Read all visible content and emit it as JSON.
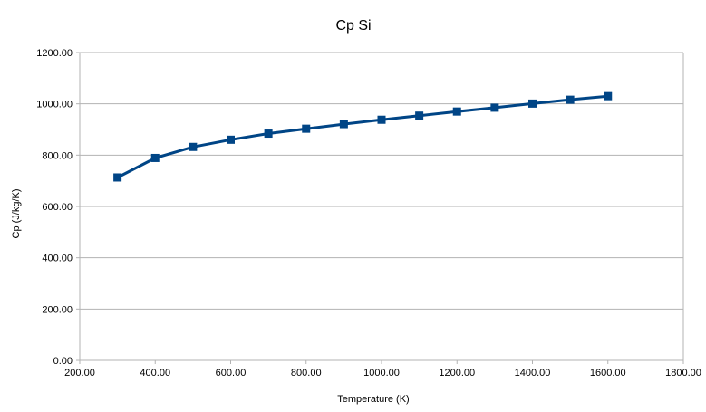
{
  "chart_data": {
    "type": "line",
    "title": "Cp Si",
    "xlabel": "Temperature (K)",
    "ylabel": "Cp (J/kg/K)",
    "xlim": [
      200,
      1800
    ],
    "ylim": [
      0,
      1200
    ],
    "x_ticks": [
      "200.00",
      "400.00",
      "600.00",
      "800.00",
      "1000.00",
      "1200.00",
      "1400.00",
      "1600.00",
      "1800.00"
    ],
    "y_ticks": [
      "0.00",
      "200.00",
      "400.00",
      "600.00",
      "800.00",
      "1000.00",
      "1200.00"
    ],
    "grid": true,
    "legend": "none",
    "series": [
      {
        "color": "#004586",
        "marker": "square",
        "x": [
          300,
          400,
          500,
          600,
          700,
          800,
          900,
          1000,
          1100,
          1200,
          1300,
          1400,
          1500,
          1600
        ],
        "y": [
          713,
          789,
          832,
          860,
          884,
          903,
          921,
          938,
          954,
          970,
          985,
          1001,
          1016,
          1030
        ]
      }
    ]
  }
}
